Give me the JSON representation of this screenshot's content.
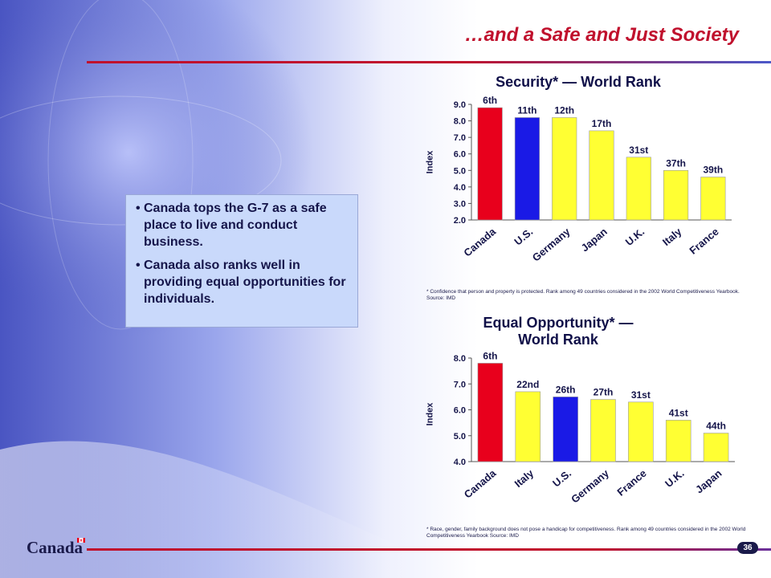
{
  "slide": {
    "title": "…and a Safe and Just Society",
    "page_number": "36",
    "wordmark": "Canada"
  },
  "callout": {
    "bullets": [
      "Canada tops the G-7 as a safe place to live and conduct business.",
      "Canada also ranks well in providing equal opportunities for individuals."
    ]
  },
  "colors": {
    "title_red": "#c0112d",
    "canada_bar": "#e8001c",
    "us_bar": "#1a1ae6",
    "other_bar": "#ffff33",
    "navy_text": "#15154a"
  },
  "chart_data": [
    {
      "type": "bar",
      "title": "Security* — World Rank",
      "ylabel": "Index",
      "ylim": [
        2.0,
        9.0
      ],
      "yticks": [
        "2.0",
        "3.0",
        "4.0",
        "5.0",
        "6.0",
        "7.0",
        "8.0",
        "9.0"
      ],
      "categories": [
        "Canada",
        "U.S.",
        "Germany",
        "Japan",
        "U.K.",
        "Italy",
        "France"
      ],
      "values": [
        8.8,
        8.2,
        8.2,
        7.4,
        5.8,
        5.0,
        4.6
      ],
      "labels": [
        "6th",
        "11th",
        "12th",
        "17th",
        "31st",
        "37th",
        "39th"
      ],
      "footnote": "* Confidence that person and property is protected.  Rank among 49 countries considered in the 2002 World Competitiveness Yearbook.        Source: IMD"
    },
    {
      "type": "bar",
      "title": "Equal Opportunity* — World Rank",
      "ylabel": "Index",
      "ylim": [
        4.0,
        8.0
      ],
      "yticks": [
        "4.0",
        "5.0",
        "6.0",
        "7.0",
        "8.0"
      ],
      "categories": [
        "Canada",
        "Italy",
        "U.S.",
        "Germany",
        "France",
        "U.K.",
        "Japan"
      ],
      "values": [
        7.8,
        6.7,
        6.5,
        6.4,
        6.3,
        5.6,
        5.1
      ],
      "labels": [
        "6th",
        "22nd",
        "26th",
        "27th",
        "31st",
        "41st",
        "44th"
      ],
      "footnote": "* Race, gender, family background does not pose a handicap for competitiveness.  Rank among 49 countries considered in the 2002 World Competitiveness Yearbook        Source: IMD"
    }
  ]
}
